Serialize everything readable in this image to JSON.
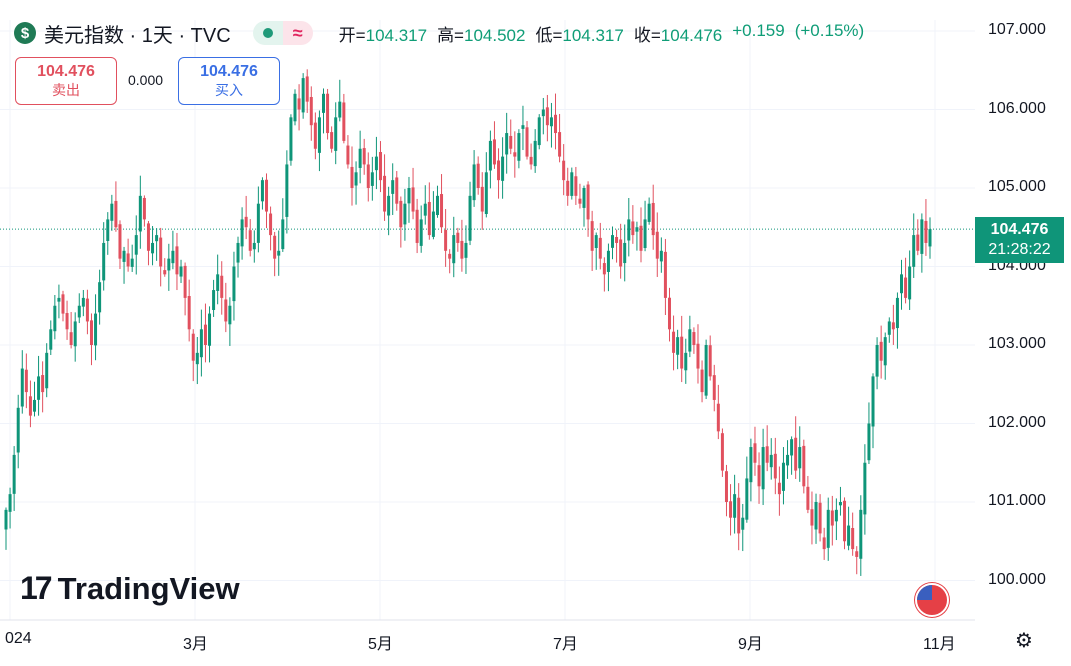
{
  "header": {
    "title": "美元指数 · 1天 · TVC",
    "logo_symbol": "$",
    "ohlc": {
      "open_label": "开=",
      "open": "104.317",
      "high_label": "高=",
      "high": "104.502",
      "low_label": "低=",
      "low": "104.317",
      "close_label": "收=",
      "close": "104.476",
      "change": "+0.159",
      "change_pct": "(+0.15%)"
    }
  },
  "trade": {
    "sell_price": "104.476",
    "sell_label": "卖出",
    "spread": "0.000",
    "buy_price": "104.476",
    "buy_label": "买入"
  },
  "price_tag": {
    "price": "104.476",
    "time": "21:28:22"
  },
  "brand": {
    "mark": "17",
    "name": "TradingView"
  },
  "colors": {
    "up": "#0f9579",
    "down": "#e1505e",
    "grid": "#f0f3fa"
  },
  "chart_data": {
    "type": "candlestick",
    "y_ticks": [
      "107.000",
      "106.000",
      "105.000",
      "104.000",
      "103.000",
      "102.000",
      "101.000",
      "100.000"
    ],
    "y_tick_values": [
      107,
      106,
      105,
      104,
      103,
      102,
      101,
      100
    ],
    "x_ticks": [
      {
        "label": "024",
        "month": 1
      },
      {
        "label": "3月",
        "month": 3
      },
      {
        "label": "5月",
        "month": 5
      },
      {
        "label": "7月",
        "month": 7
      },
      {
        "label": "9月",
        "month": 9
      },
      {
        "label": "11月",
        "month": 11
      }
    ],
    "ylim": [
      99.5,
      107.3
    ],
    "last_price": 104.476,
    "closes": [
      100.9,
      101.1,
      101.6,
      102.2,
      102.7,
      102.4,
      102.1,
      102.3,
      102.6,
      102.4,
      102.9,
      103.2,
      103.5,
      103.6,
      103.4,
      103.2,
      103.0,
      103.3,
      103.5,
      103.6,
      103.3,
      103.0,
      103.4,
      103.8,
      104.3,
      104.6,
      104.8,
      104.5,
      104.1,
      104.2,
      104.0,
      104.1,
      104.4,
      104.9,
      104.6,
      104.2,
      104.3,
      104.4,
      104.0,
      103.9,
      104.1,
      104.2,
      103.9,
      104.0,
      103.6,
      103.2,
      102.8,
      102.9,
      103.2,
      103.0,
      103.4,
      103.7,
      103.9,
      103.6,
      103.3,
      103.5,
      104.0,
      104.3,
      104.6,
      104.5,
      104.2,
      104.3,
      104.8,
      105.1,
      104.7,
      104.4,
      104.1,
      104.2,
      104.6,
      105.3,
      105.9,
      106.2,
      106.0,
      106.4,
      106.1,
      105.8,
      105.5,
      105.9,
      106.2,
      105.7,
      105.5,
      105.9,
      106.1,
      105.6,
      105.3,
      105.0,
      105.2,
      105.5,
      105.3,
      105.0,
      105.2,
      105.4,
      105.1,
      104.7,
      104.9,
      105.1,
      104.8,
      104.5,
      104.8,
      105.0,
      104.7,
      104.3,
      104.6,
      104.8,
      104.4,
      104.7,
      104.9,
      104.5,
      104.2,
      104.1,
      104.4,
      104.3,
      104.1,
      104.3,
      104.9,
      105.3,
      105.0,
      104.7,
      105.2,
      105.6,
      105.3,
      105.1,
      105.4,
      105.7,
      105.5,
      105.4,
      105.7,
      105.8,
      105.4,
      105.3,
      105.6,
      105.9,
      106.0,
      105.8,
      105.9,
      105.7,
      105.4,
      105.1,
      104.9,
      105.2,
      104.9,
      104.8,
      105.0,
      104.6,
      104.2,
      104.4,
      104.1,
      103.9,
      104.2,
      104.4,
      104.3,
      104.0,
      104.3,
      104.6,
      104.4,
      104.5,
      104.2,
      104.6,
      104.8,
      104.4,
      104.1,
      104.2,
      103.6,
      103.2,
      102.9,
      103.1,
      102.7,
      102.9,
      103.2,
      103.0,
      102.7,
      102.4,
      103.0,
      102.6,
      102.3,
      101.9,
      101.4,
      101.0,
      100.8,
      101.1,
      100.6,
      100.8,
      101.3,
      101.7,
      101.5,
      101.2,
      101.7,
      101.5,
      101.6,
      101.3,
      101.1,
      101.5,
      101.6,
      101.8,
      101.4,
      101.7,
      101.2,
      100.9,
      100.7,
      101.0,
      100.6,
      100.4,
      100.9,
      100.7,
      100.9,
      101.0,
      100.5,
      100.7,
      100.4,
      100.3,
      100.9,
      101.5,
      102.0,
      102.6,
      103.0,
      102.8,
      103.1,
      103.3,
      103.2,
      103.6,
      103.9,
      103.6,
      104.0,
      104.4,
      104.2,
      104.6,
      104.3,
      104.476
    ]
  }
}
